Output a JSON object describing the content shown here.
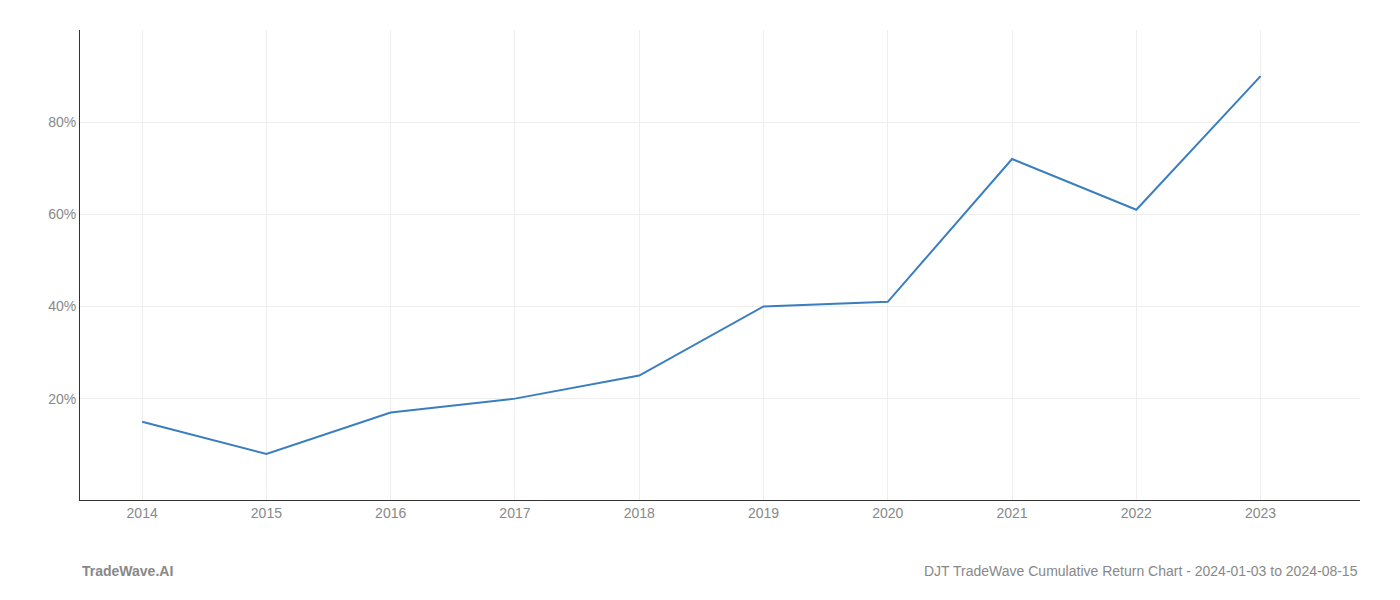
{
  "chart_data": {
    "type": "line",
    "x": [
      2014,
      2015,
      2016,
      2017,
      2018,
      2019,
      2020,
      2021,
      2022,
      2023
    ],
    "values": [
      15,
      8,
      17,
      20,
      25,
      40,
      41,
      72,
      61,
      90
    ],
    "color": "#3a7ebf",
    "xlim": [
      2013.5,
      2023.8
    ],
    "ylim": [
      -2,
      100
    ],
    "xticks": [
      2014,
      2015,
      2016,
      2017,
      2018,
      2019,
      2020,
      2021,
      2022,
      2023
    ],
    "yticks": [
      {
        "value": 20,
        "label": "20%"
      },
      {
        "value": 40,
        "label": "40%"
      },
      {
        "value": 60,
        "label": "60%"
      },
      {
        "value": 80,
        "label": "80%"
      }
    ],
    "grid": true,
    "annotations": [
      "TradeWave.AI",
      "DJT TradeWave Cumulative Return Chart - 2024-01-03 to 2024-08-15"
    ]
  }
}
